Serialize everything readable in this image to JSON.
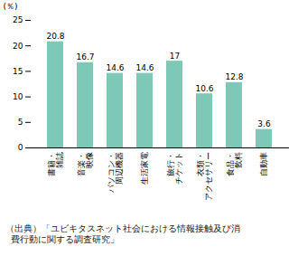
{
  "chart_data": {
    "type": "bar",
    "categories": [
      "書籍・\n雑誌",
      "音楽・\n映像",
      "パソコン・\n周辺機器",
      "生活家電",
      "旅行・\nチケット",
      "衣類・\nアクセサリー",
      "食品・\n飲料",
      "自動車"
    ],
    "values": [
      20.8,
      16.7,
      14.6,
      14.6,
      17.0,
      10.6,
      12.8,
      3.6
    ],
    "color": "#7EC8B8",
    "ylabel": "(％)",
    "ylim": [
      0,
      25
    ],
    "yticks": [
      0,
      5,
      10,
      15,
      20,
      25
    ],
    "grid": false,
    "data_labels": true,
    "source": "（出典）「ユビキタスネット社会における情報接触及び消\n\t費行動に関する調査研究」"
  }
}
